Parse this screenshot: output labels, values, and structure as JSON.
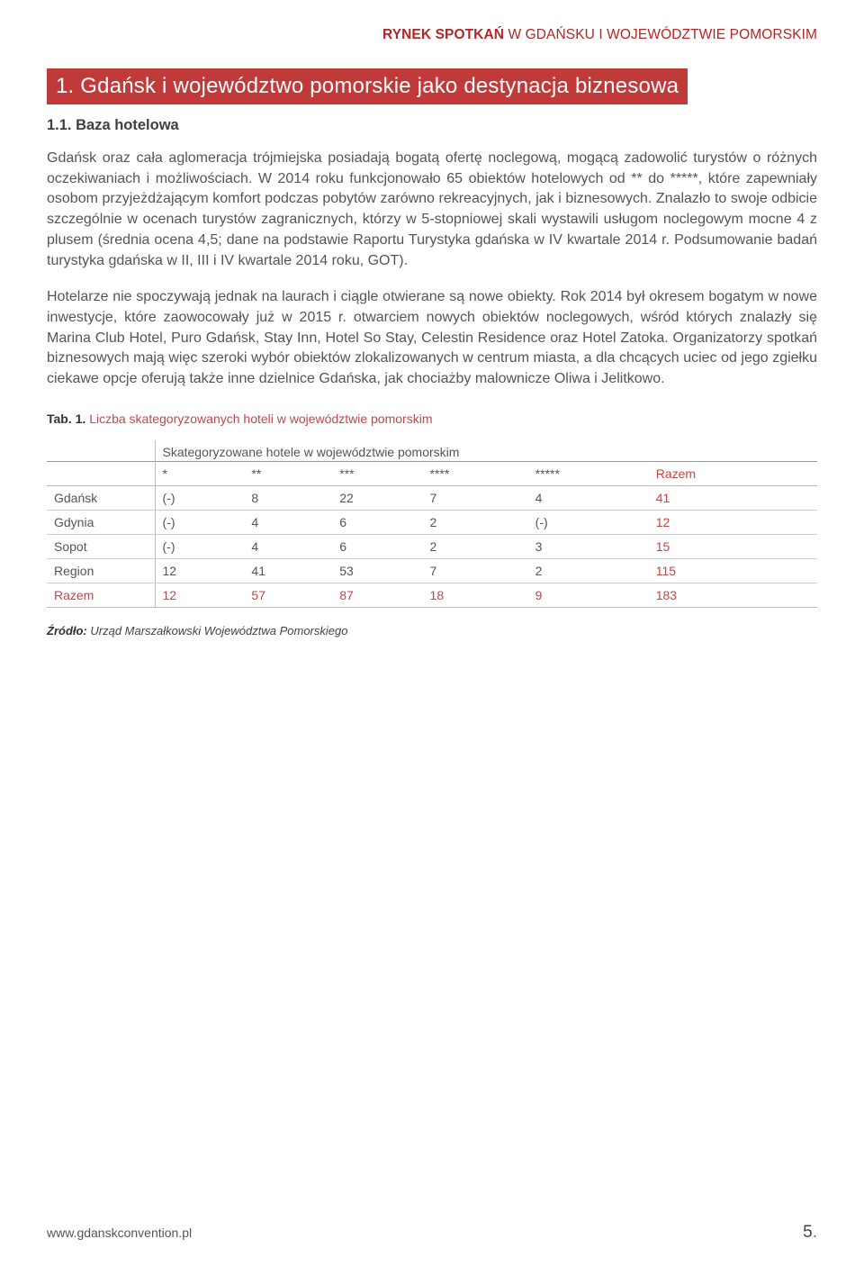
{
  "header": {
    "bold": "RYNEK SPOTKAŃ",
    "light": " W GDAŃSKU I WOJEWÓDZTWIE POMORSKIM"
  },
  "section": {
    "number_title": " 1. Gdańsk i województwo pomorskie jako destynacja biznesowa ",
    "subsection": "1.1. Baza hotelowa"
  },
  "paragraphs": {
    "p1": "Gdańsk oraz cała aglomeracja trójmiejska posiadają bogatą ofertę noclegową, mogącą zadowolić turystów o różnych oczekiwaniach i możliwościach. W 2014 roku funkcjonowało 65 obiektów hotelowych od ** do *****, które zapewniały osobom przyjeżdżającym komfort podczas pobytów zarówno rekreacyjnych, jak i biznesowych. Znalazło to swoje odbicie szczególnie w ocenach turystów zagranicznych, którzy w 5-stopniowej skali wystawili usługom noclegowym mocne 4 z plusem (średnia ocena 4,5; dane na podstawie Raportu Turystyka gdańska w IV kwartale 2014 r. Podsumowanie badań turystyka gdańska w II, III i IV kwartale 2014 roku, GOT).",
    "p2": "Hotelarze nie spoczywają jednak na laurach i ciągle otwierane są nowe obiekty. Rok 2014 był okresem bogatym w nowe inwestycje, które zaowocowały już w 2015 r. otwarciem nowych obiektów noclegowych, wśród których znalazły się Marina Club Hotel, Puro Gdańsk, Stay Inn, Hotel So Stay, Celestin Residence oraz Hotel Zatoka. Organizatorzy spotkań biznesowych mają więc szeroki wybór obiektów zlokalizowanych w centrum miasta, a dla chcących uciec od jego zgiełku ciekawe opcje oferują także inne dzielnice Gdańska, jak chociażby malownicze Oliwa i Jelitkowo."
  },
  "table": {
    "label_bold": "Tab. 1.",
    "label_rest": " Liczba skategoryzowanych hoteli w województwie pomorskim",
    "subtitle": "Skategoryzowane hotele w województwie pomorskim",
    "columns": [
      "*",
      "**",
      "***",
      "****",
      "*****",
      "Razem"
    ],
    "rows": [
      {
        "label": "Gdańsk",
        "cells": [
          "(-)",
          "8",
          "22",
          "7",
          "4",
          "41"
        ]
      },
      {
        "label": "Gdynia",
        "cells": [
          "(-)",
          "4",
          "6",
          "2",
          "(-)",
          "12"
        ]
      },
      {
        "label": "Sopot",
        "cells": [
          "(-)",
          "4",
          "6",
          "2",
          "3",
          "15"
        ]
      },
      {
        "label": "Region",
        "cells": [
          "12",
          "41",
          "53",
          "7",
          "2",
          "115"
        ]
      }
    ],
    "total": {
      "label": "Razem",
      "cells": [
        "12",
        "57",
        "87",
        "18",
        "9",
        "183"
      ]
    },
    "source_bold": "Źródło:",
    "source_rest": " Urząd Marszałkowski Województwa Pomorskiego"
  },
  "footer": {
    "url": "www.gdanskconvention.pl",
    "page": "5",
    "dot": "."
  },
  "colors": {
    "brand_red": "#c13a3a",
    "text_red": "#c04848",
    "header_red": "#b42626",
    "body_text": "#555555"
  }
}
